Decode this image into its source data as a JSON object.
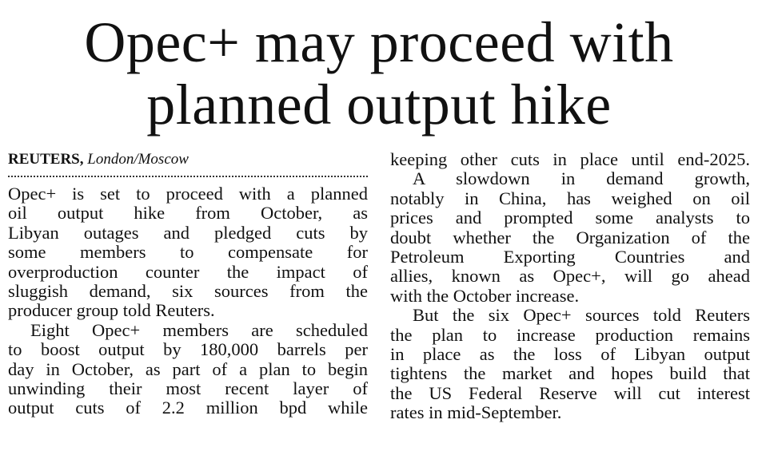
{
  "headline": [
    "Opec+ may proceed with",
    "planned output hike"
  ],
  "byline": {
    "source": "REUTERS,",
    "location": "London/Moscow"
  },
  "left_column": [
    [
      "Opec+ is set to proceed with a planned",
      "oil output hike from October, as",
      "Libyan outages and pledged cuts by",
      "some members to compensate for",
      "overproduction counter the impact of",
      "sluggish demand, six sources from the",
      "producer group told Reuters."
    ],
    [
      "Eight Opec+ members are scheduled",
      "to boost output by 180,000 barrels per",
      "day in October, as part of a plan to begin",
      "unwinding their most recent layer of",
      "output cuts of 2.2 million bpd while"
    ]
  ],
  "right_column": [
    [
      "keeping other cuts in place until end-2025."
    ],
    [
      "A slowdown in demand growth,",
      "notably in China, has weighed on oil",
      "prices and prompted some analysts to",
      "doubt whether the Organization of the",
      "Petroleum Exporting Countries and",
      "allies, known as Opec+, will go ahead",
      "with the October increase."
    ],
    [
      "But the six Opec+ sources told Reuters",
      "the plan to increase production remains",
      "in place as the loss of Libyan output",
      "tightens the market and hopes build that",
      "the US Federal Reserve will cut interest",
      "rates in mid-September."
    ]
  ]
}
